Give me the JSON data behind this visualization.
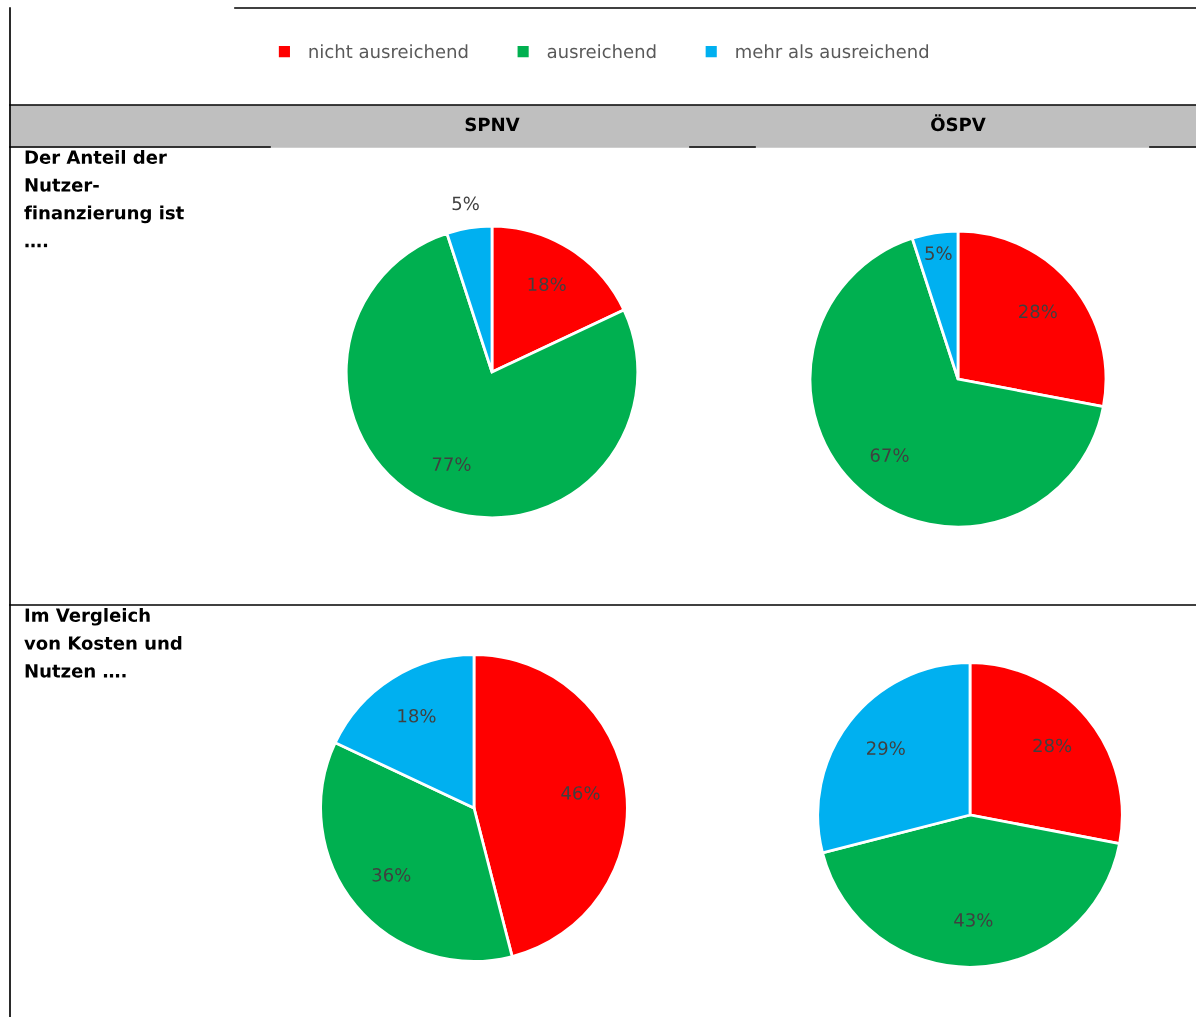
{
  "chart_data": [
    {
      "type": "pie",
      "title": "SPNV",
      "annotations": [
        "Der Anteil der\nNutzer-\nfinanzierung ist\n…."
      ],
      "legend": "top",
      "categories": [
        "nicht ausreichend",
        "ausreichend",
        "mehr als ausreichend"
      ],
      "values": [
        18,
        77,
        5
      ],
      "value_labels": [
        "18%",
        "77%",
        "5%"
      ],
      "colors": [
        "#ff0000",
        "#00b050",
        "#00b0f0"
      ]
    },
    {
      "type": "pie",
      "title": "ÖSPV",
      "categories": [
        null,
        null,
        null
      ],
      "values": [
        28,
        67,
        5
      ],
      "value_labels": [
        "28%",
        "67%",
        "5%"
      ],
      "colors": [
        "#ff0000",
        "#00b050",
        "#00b0f0"
      ]
    },
    {
      "type": "pie",
      "annotations": [
        "Im Vergleich\nvon Kosten und\nNutzen …."
      ],
      "categories": [
        null,
        null,
        null
      ],
      "values": [
        46,
        36,
        18
      ],
      "value_labels": [
        "46%",
        "36%",
        "18%"
      ],
      "colors": [
        "#ff0000",
        "#00b050",
        "#00b0f0"
      ]
    },
    {
      "type": "pie",
      "categories": [
        null,
        null,
        null
      ],
      "values": [
        28,
        43,
        29
      ],
      "value_labels": [
        "28%",
        "43%",
        "29%"
      ],
      "colors": [
        "#ff0000",
        "#00b050",
        "#00b0f0"
      ]
    }
  ]
}
